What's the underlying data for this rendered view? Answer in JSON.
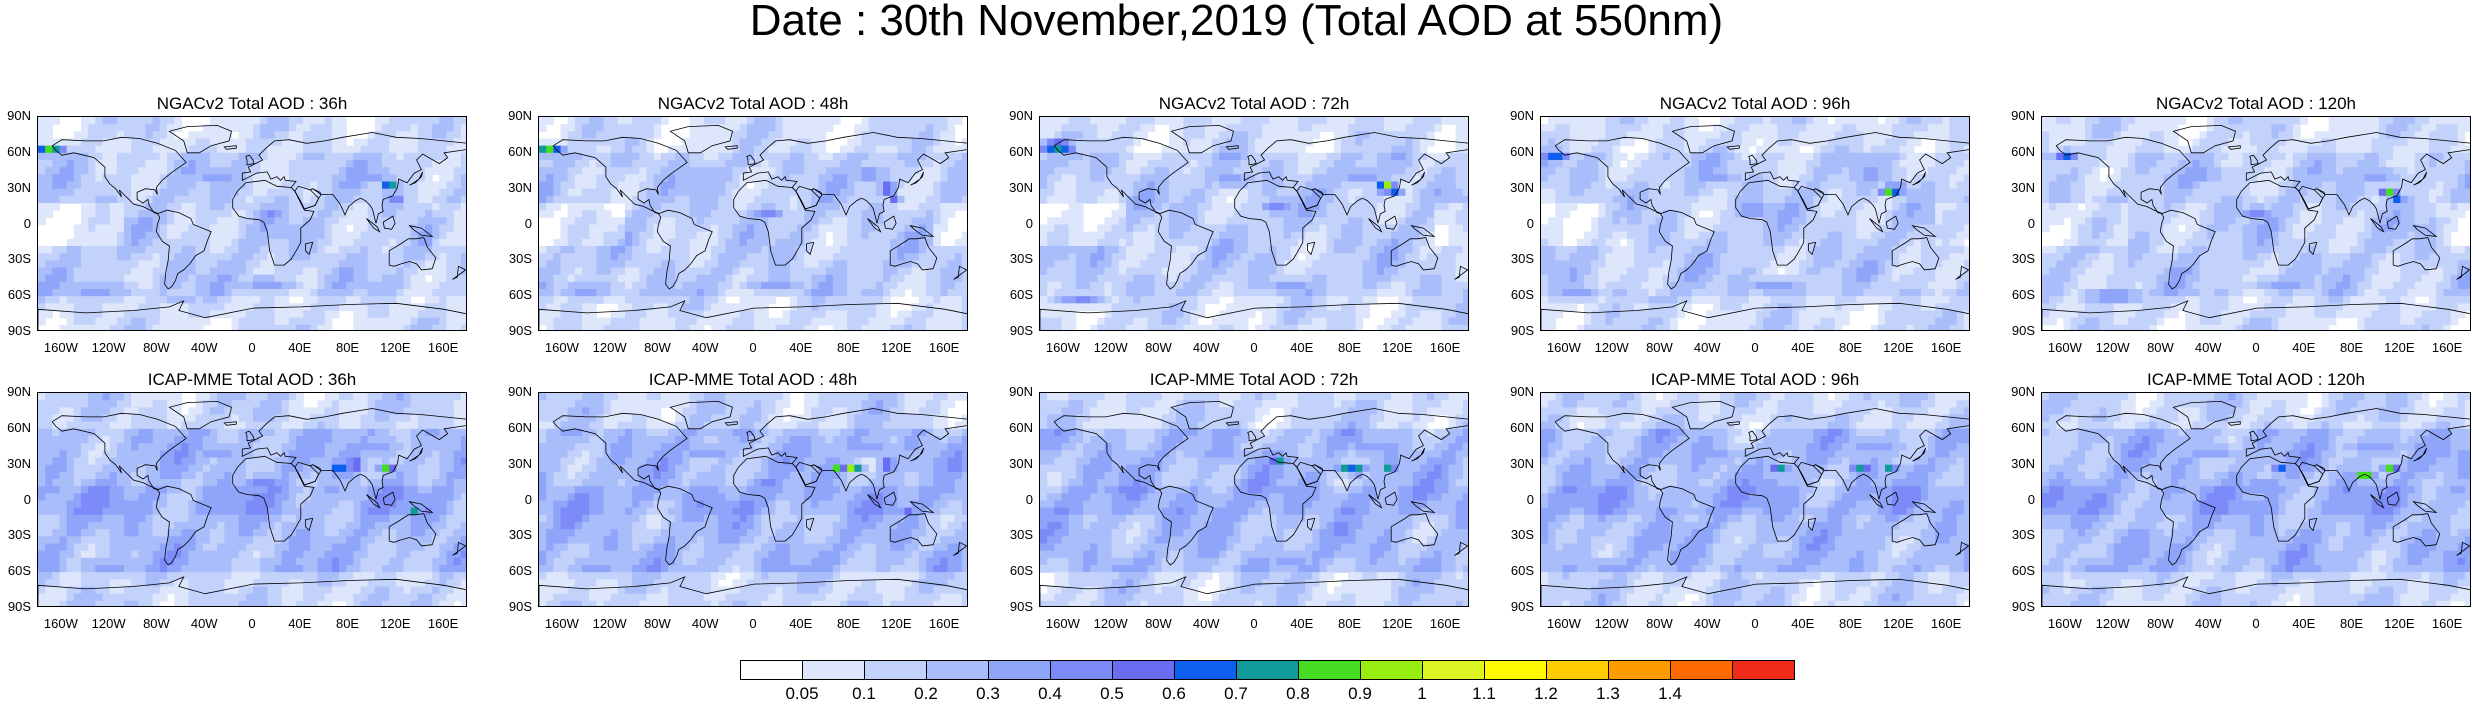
{
  "title": "Date : 30th November,2019 (Total AOD at 550nm)",
  "panels": [
    {
      "title": "NGACv2 Total AOD : 36h",
      "model": "NGACv2",
      "lead_hours": 36
    },
    {
      "title": "NGACv2 Total AOD : 48h",
      "model": "NGACv2",
      "lead_hours": 48
    },
    {
      "title": "NGACv2 Total AOD : 72h",
      "model": "NGACv2",
      "lead_hours": 72
    },
    {
      "title": "NGACv2 Total AOD : 96h",
      "model": "NGACv2",
      "lead_hours": 96
    },
    {
      "title": "NGACv2 Total AOD : 120h",
      "model": "NGACv2",
      "lead_hours": 120
    },
    {
      "title": "ICAP-MME Total AOD : 36h",
      "model": "ICAP-MME",
      "lead_hours": 36
    },
    {
      "title": "ICAP-MME Total AOD : 48h",
      "model": "ICAP-MME",
      "lead_hours": 48
    },
    {
      "title": "ICAP-MME Total AOD : 72h",
      "model": "ICAP-MME",
      "lead_hours": 72
    },
    {
      "title": "ICAP-MME Total AOD : 96h",
      "model": "ICAP-MME",
      "lead_hours": 96
    },
    {
      "title": "ICAP-MME Total AOD : 120h",
      "model": "ICAP-MME",
      "lead_hours": 120
    }
  ],
  "lat_ticks": [
    "90N",
    "60N",
    "30N",
    "0",
    "30S",
    "60S",
    "90S"
  ],
  "lon_ticks": [
    "160W",
    "120W",
    "80W",
    "40W",
    "0",
    "40E",
    "80E",
    "120E",
    "160E"
  ],
  "colorbar": {
    "levels": [
      "0.05",
      "0.1",
      "0.2",
      "0.3",
      "0.4",
      "0.5",
      "0.6",
      "0.7",
      "0.8",
      "0.9",
      "1",
      "1.1",
      "1.2",
      "1.3",
      "1.4"
    ],
    "colors": [
      "#ffffff",
      "#dde6fb",
      "#c3d2fb",
      "#a9bdfb",
      "#8fa5fa",
      "#7c8bf7",
      "#6a6cf1",
      "#0f5fef",
      "#119a9a",
      "#44dd22",
      "#99ee11",
      "#ddf522",
      "#fffa00",
      "#ffcc00",
      "#ff9a00",
      "#ff6a00",
      "#ee2a18"
    ]
  }
}
